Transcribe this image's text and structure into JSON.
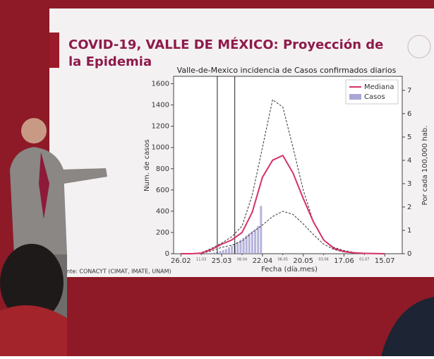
{
  "slide_title_1": "COVID-19, VALLE DE MÉXICO: Proyección de",
  "slide_title_2": "la Epidemia",
  "source": "nte: CONACYT (CIMAT, IMATE, UNAM)",
  "chart_data": {
    "type": "line",
    "title": "Valle-de-Mexico incidencia de Casos confirmados diarios",
    "ylabel": "Num. de casos",
    "y2label": "Por cada 100,000 hab.",
    "xlabel": "Fecha (día.mes)",
    "x": [
      0,
      7,
      14,
      21,
      28,
      35,
      42,
      49,
      56,
      63,
      70,
      77,
      84,
      91,
      98,
      105,
      112,
      119,
      126,
      133,
      140
    ],
    "series": [
      {
        "name": "Mediana",
        "color": "#d6306a",
        "values": [
          0,
          0,
          5,
          40,
          90,
          130,
          200,
          390,
          720,
          880,
          925,
          760,
          520,
          300,
          130,
          50,
          20,
          8,
          3,
          1,
          0
        ]
      }
    ],
    "interval": {
      "color": "#333333",
      "upper": [
        0,
        0,
        10,
        50,
        100,
        160,
        260,
        550,
        1000,
        1450,
        1380,
        1000,
        600,
        300,
        130,
        60,
        30,
        12,
        5,
        2,
        0
      ],
      "lower": [
        0,
        0,
        3,
        25,
        60,
        80,
        120,
        200,
        270,
        350,
        400,
        370,
        280,
        180,
        90,
        40,
        15,
        6,
        2,
        1,
        0
      ]
    },
    "bars": {
      "name": "Casos",
      "color": "#a9a6d6",
      "x": [
        17,
        19,
        21,
        23,
        25,
        27,
        29,
        31,
        33,
        35,
        37,
        39,
        41,
        43,
        45,
        47,
        49,
        51,
        53,
        55
      ],
      "values": [
        2,
        5,
        8,
        12,
        18,
        25,
        35,
        45,
        60,
        75,
        90,
        110,
        130,
        150,
        170,
        190,
        210,
        230,
        260,
        450
      ]
    },
    "vlines": [
      25,
      37
    ],
    "xlim": [
      -5,
      152
    ],
    "ylim": [
      0,
      1670
    ],
    "y2lim": [
      0,
      7.6
    ],
    "xticks": [
      {
        "value": 0,
        "label": "26.02"
      },
      {
        "value": 28,
        "label": "25.03"
      },
      {
        "value": 56,
        "label": "22.04"
      },
      {
        "value": 84,
        "label": "20.05"
      },
      {
        "value": 112,
        "label": "17.06"
      },
      {
        "value": 140,
        "label": "15.07"
      }
    ],
    "xticks_minor": [
      {
        "value": 14,
        "label": "11.03"
      },
      {
        "value": 42,
        "label": "08.04"
      },
      {
        "value": 70,
        "label": "06.05"
      },
      {
        "value": 98,
        "label": "03.06"
      },
      {
        "value": 126,
        "label": "01.07"
      }
    ],
    "yticks": [
      0,
      200,
      400,
      600,
      800,
      1000,
      1200,
      1400,
      1600
    ],
    "y2ticks": [
      0,
      1,
      2,
      3,
      4,
      5,
      6,
      7
    ],
    "legend": "upper right"
  }
}
